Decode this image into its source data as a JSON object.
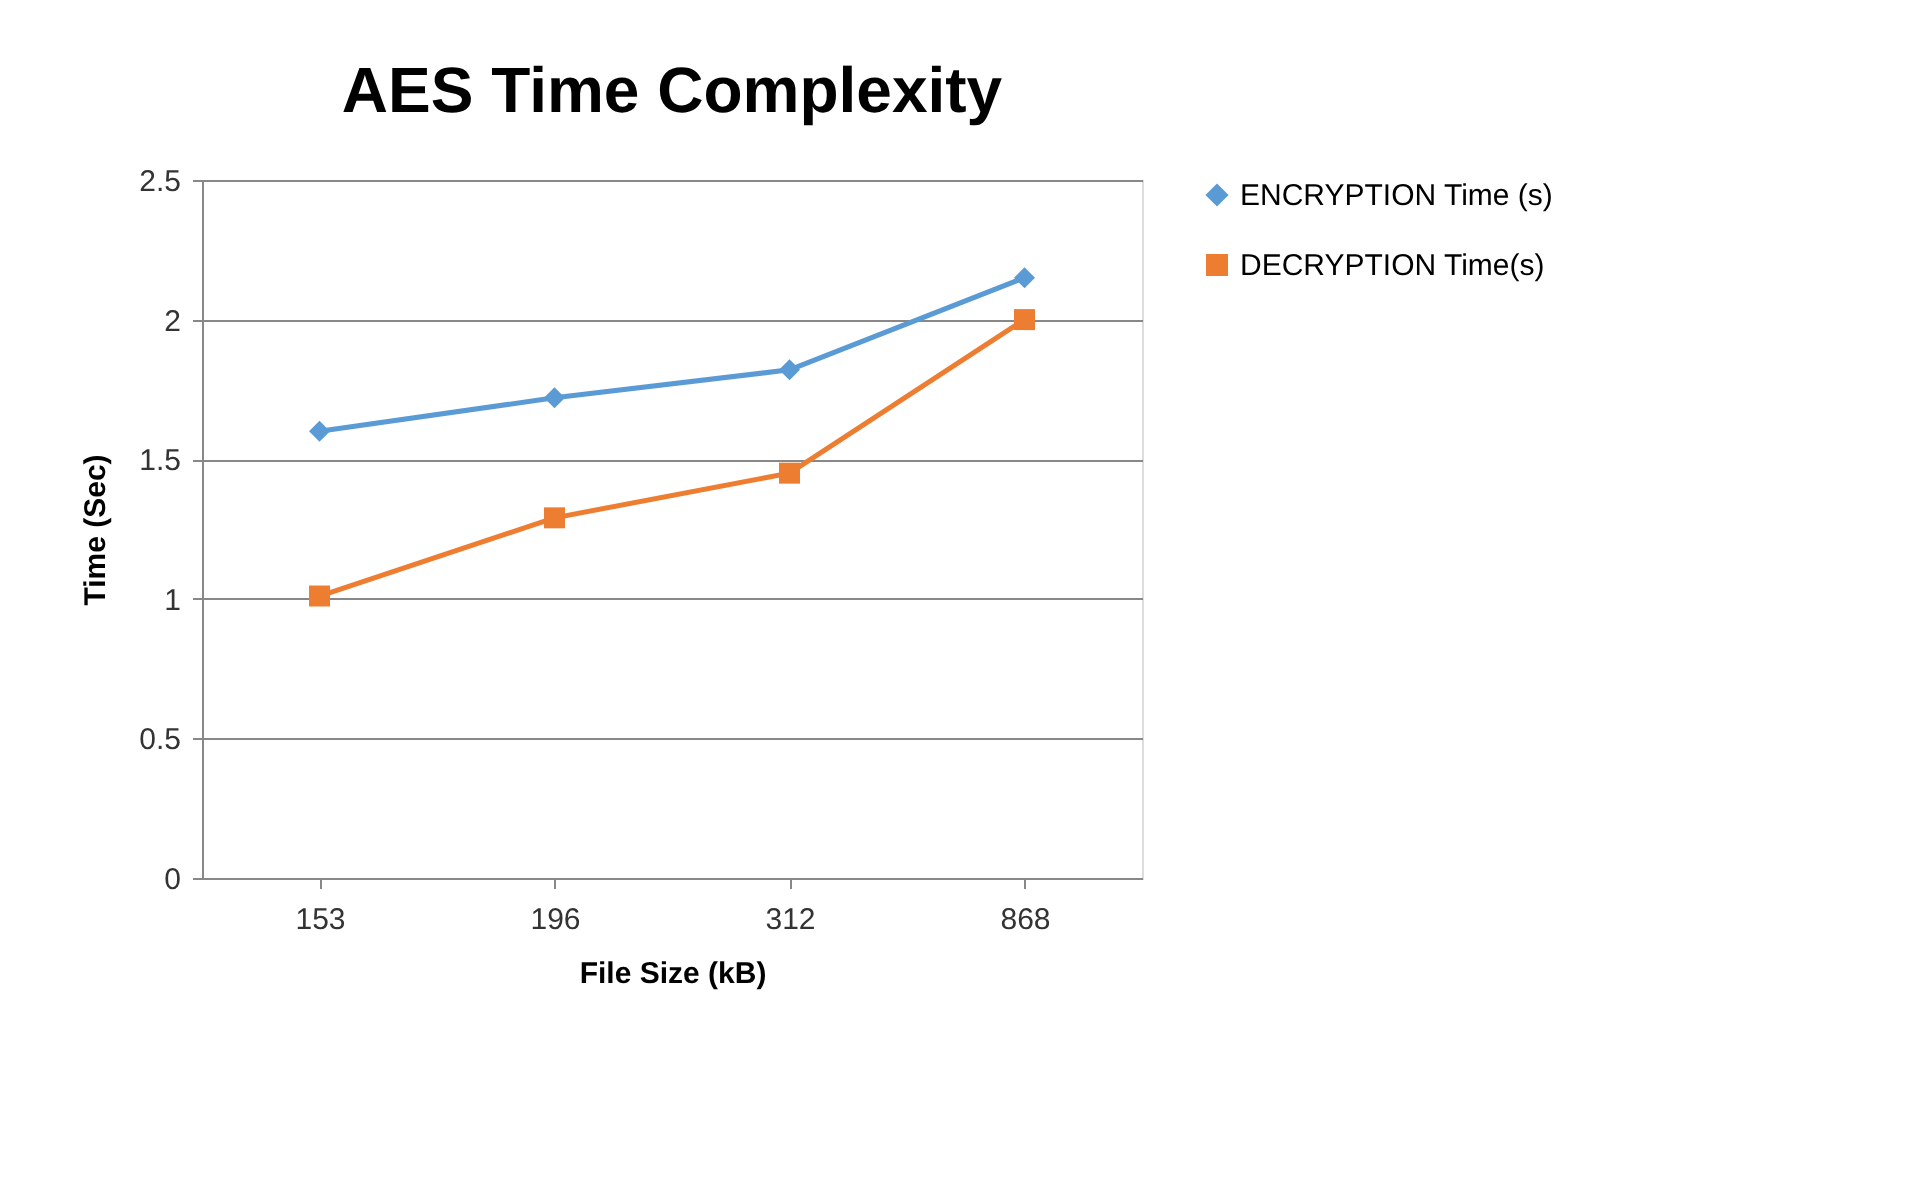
{
  "chart_data": {
    "type": "line",
    "title": "AES Time Complexity",
    "xlabel": "File Size (kB)",
    "ylabel": "Time (Sec)",
    "categories": [
      "153",
      "196",
      "312",
      "868"
    ],
    "series": [
      {
        "name": "ENCRYPTION Time (s)",
        "color": "#5b9bd5",
        "marker": "diamond",
        "values": [
          1.6,
          1.72,
          1.82,
          2.15
        ]
      },
      {
        "name": "DECRYPTION Time(s)",
        "color": "#ed7d31",
        "marker": "square",
        "values": [
          1.01,
          1.29,
          1.45,
          2.0
        ]
      }
    ],
    "ylim": [
      0,
      2.5
    ],
    "yticks": [
      0,
      0.5,
      1,
      1.5,
      2,
      2.5
    ],
    "grid": "y",
    "legend": "right"
  }
}
